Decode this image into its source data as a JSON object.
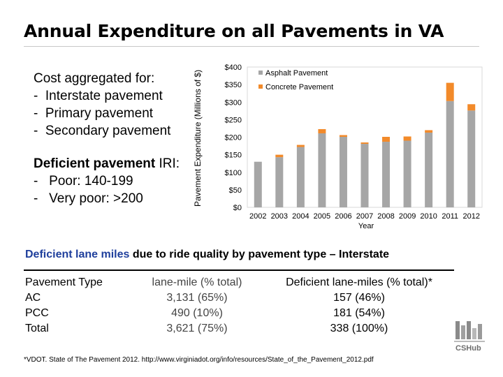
{
  "title": "Annual Expenditure on all Pavements in VA",
  "left": {
    "cost_heading": "Cost aggregated for:",
    "cost_items": [
      "-  Interstate pavement",
      "-  Primary pavement",
      "-  Secondary pavement"
    ],
    "deficient_heading_bold": "Deficient pavement",
    "deficient_heading_rest": " IRI:",
    "deficient_items": [
      "-   Poor: 140-199",
      "-   Very poor: >200"
    ]
  },
  "chart_data": {
    "type": "bar",
    "stacked": true,
    "categories": [
      "2002",
      "2003",
      "2004",
      "2005",
      "2006",
      "2007",
      "2008",
      "2009",
      "2010",
      "2011",
      "2012"
    ],
    "series": [
      {
        "name": "Asphalt Pavement",
        "color": "#a6a6a6",
        "values": [
          130,
          143,
          172,
          211,
          201,
          181,
          187,
          190,
          213,
          303,
          276
        ]
      },
      {
        "name": "Concrete Pavement",
        "color": "#f28a2a",
        "values": [
          0,
          7,
          6,
          12,
          5,
          4,
          14,
          12,
          7,
          52,
          18
        ]
      }
    ],
    "xlabel": "Year",
    "ylabel": "Pavement Expenditure (Millions of $)",
    "yticks": [
      "$0",
      "$50",
      "$100",
      "$150",
      "$200",
      "$250",
      "$300",
      "$350",
      "$400"
    ],
    "ylim": [
      0,
      400
    ],
    "legend_position": "top-left",
    "grid": false
  },
  "subheading": {
    "bold_part": "Deficient lane miles",
    "rest": " due to ride quality by pavement type – Interstate"
  },
  "table": {
    "headers": [
      "Pavement Type",
      "lane-mile (% total)",
      "Deficient lane-miles (% total)*"
    ],
    "rows": [
      [
        "AC",
        "3,131 (65%)",
        "157 (46%)"
      ],
      [
        "PCC",
        "490 (10%)",
        "181 (54%)"
      ],
      [
        "Total",
        "3,621 (75%)",
        "338 (100%)"
      ]
    ]
  },
  "footnote": "*VDOT. State of The Pavement 2012. http://www.virginiadot.org/info/resources/State_of_the_Pavement_2012.pdf",
  "logo_text": "CSHub"
}
